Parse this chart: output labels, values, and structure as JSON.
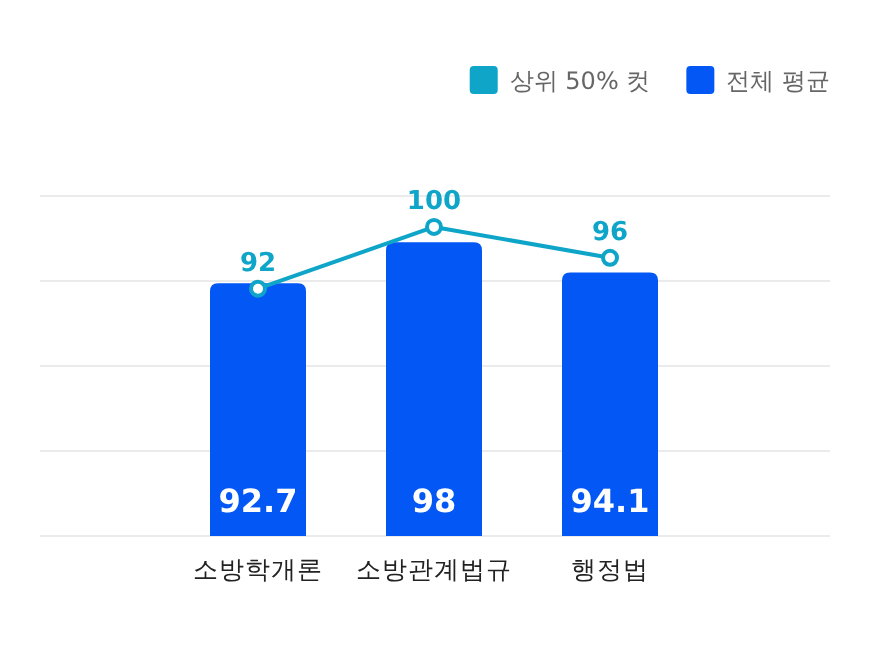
{
  "chart_data": {
    "type": "bar",
    "categories": [
      "소방학개론",
      "소방관계법규",
      "행정법"
    ],
    "series": [
      {
        "name": "상위 50% 컷",
        "type": "line",
        "color": "#0ea5c8",
        "values": [
          92,
          100,
          96
        ]
      },
      {
        "name": "전체 평균",
        "color": "#0257f5",
        "values": [
          92.7,
          98,
          94.1
        ]
      }
    ],
    "ylim": [
      60,
      104
    ],
    "yticks": [
      {
        "value": 60,
        "label": null
      },
      {
        "value": 71,
        "label": null
      },
      {
        "value": 82,
        "label": null
      },
      {
        "value": 93,
        "label": null
      },
      {
        "value": 104,
        "label": null
      }
    ],
    "grid": "y",
    "legend": "top right",
    "marker": "circle",
    "data_labels": true,
    "tick_labels": "x"
  }
}
